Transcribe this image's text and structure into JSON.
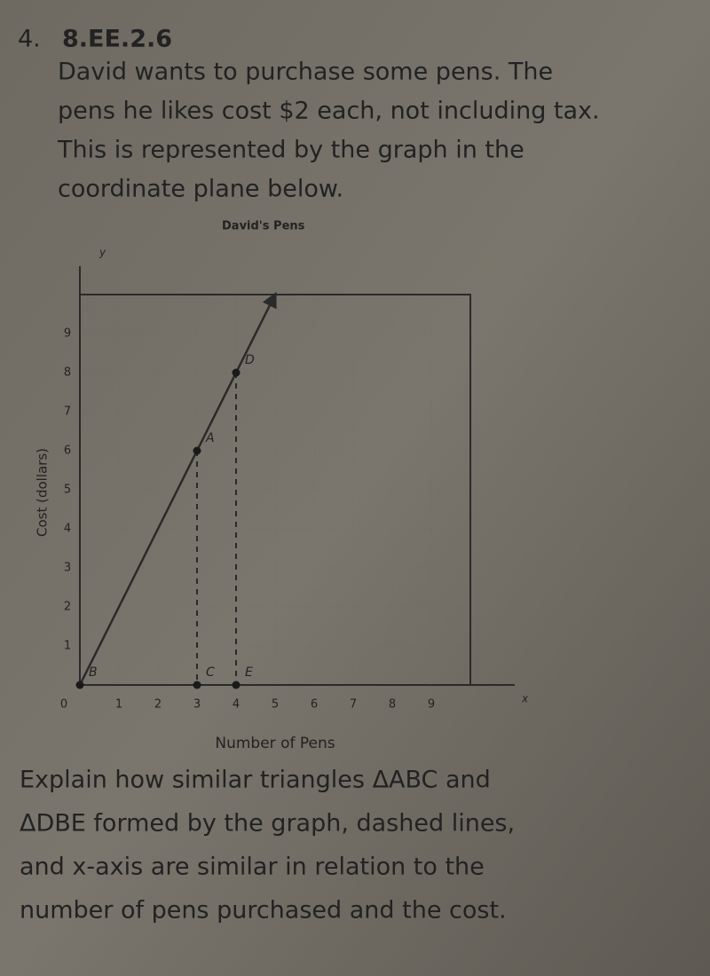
{
  "problem": {
    "number": "4.",
    "standard": "8.EE.2.6",
    "lines": [
      "David wants to purchase some pens. The",
      "pens he likes cost $2 each, not including tax.",
      "This is represented by the graph in the",
      "coordinate plane below."
    ]
  },
  "chart_data": {
    "type": "line",
    "title": "David's Pens",
    "x_label": "Number of Pens",
    "y_label": "Cost (dollars)",
    "x_axis_letter": "x",
    "y_axis_letter": "y",
    "x": [
      0,
      3,
      4,
      5
    ],
    "series": [
      {
        "name": "cost",
        "color": "#2a2a2a",
        "values": [
          0,
          6,
          8,
          10
        ]
      }
    ],
    "points": [
      {
        "label": "A",
        "x": 3,
        "y": 6
      },
      {
        "label": "B",
        "x": 0,
        "y": 0
      },
      {
        "label": "C",
        "x": 3,
        "y": 0
      },
      {
        "label": "D",
        "x": 4,
        "y": 8
      },
      {
        "label": "E",
        "x": 4,
        "y": 0
      }
    ],
    "xlim": [
      0,
      10
    ],
    "ylim": [
      0,
      10
    ],
    "xticks": [
      0,
      1,
      2,
      3,
      4,
      5,
      6,
      7,
      8,
      9
    ],
    "yticks": [
      1,
      2,
      3,
      4,
      5,
      6,
      7,
      8,
      9
    ],
    "grid": true
  },
  "question": {
    "lines": [
      "Explain how similar triangles ΔABC and",
      "ΔDBE formed by the graph, dashed lines,",
      "and x-axis are similar in relation to the",
      "number of pens purchased and the cost."
    ]
  }
}
